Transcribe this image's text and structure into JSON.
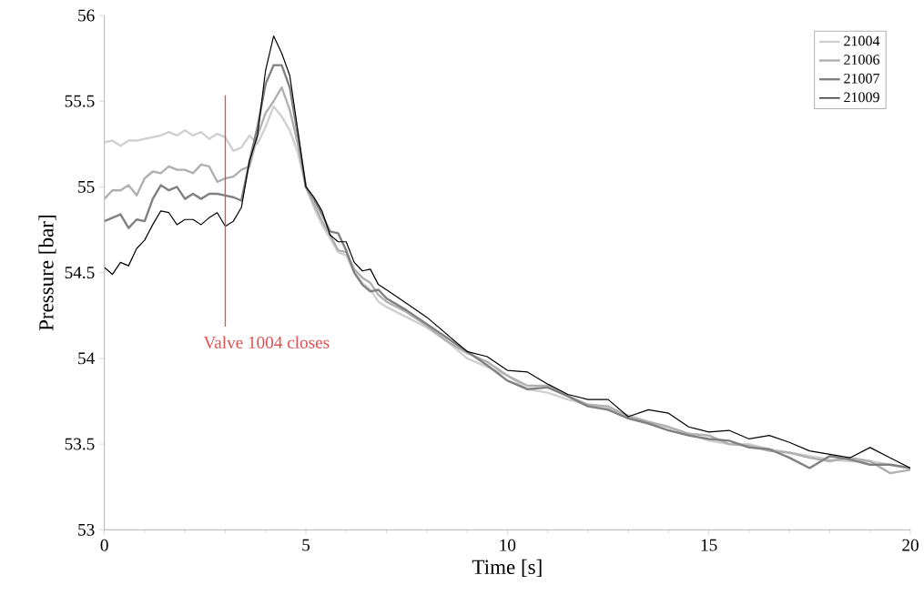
{
  "chart_data": {
    "type": "line",
    "xlabel": "Time [s]",
    "ylabel": "Pressure [bar]",
    "x": [
      0,
      0.2,
      0.4,
      0.6,
      0.8,
      1.0,
      1.2,
      1.4,
      1.6,
      1.8,
      2.0,
      2.2,
      2.4,
      2.6,
      2.8,
      3.0,
      3.2,
      3.4,
      3.6,
      3.8,
      4.0,
      4.2,
      4.4,
      4.6,
      4.8,
      5.0,
      5.2,
      5.4,
      5.6,
      5.8,
      6.0,
      6.2,
      6.4,
      6.6,
      6.8,
      7.0,
      7.5,
      8.0,
      8.5,
      9.0,
      9.5,
      10,
      10.5,
      11,
      11.5,
      12,
      12.5,
      13,
      13.5,
      14,
      14.5,
      15,
      15.5,
      16,
      16.5,
      17,
      17.5,
      18,
      18.5,
      19,
      19.5,
      20
    ],
    "series": [
      {
        "name": "21004",
        "color": "#d0d0d0",
        "values": [
          55.26,
          55.27,
          55.24,
          55.27,
          55.27,
          55.28,
          55.29,
          55.3,
          55.32,
          55.3,
          55.33,
          55.3,
          55.32,
          55.28,
          55.31,
          55.29,
          55.21,
          55.23,
          55.3,
          55.25,
          55.35,
          55.47,
          55.41,
          55.33,
          55.2,
          55.0,
          54.88,
          54.78,
          54.7,
          54.62,
          54.6,
          54.5,
          54.44,
          54.4,
          54.33,
          54.3,
          54.24,
          54.18,
          54.1,
          54.0,
          53.95,
          53.9,
          53.82,
          53.8,
          53.76,
          53.73,
          53.71,
          53.67,
          53.63,
          53.6,
          53.56,
          53.52,
          53.5,
          53.5,
          53.47,
          53.45,
          53.43,
          53.41,
          53.4,
          53.4,
          53.38,
          53.36
        ]
      },
      {
        "name": "21006",
        "color": "#b0b0b0",
        "values": [
          54.93,
          54.98,
          54.98,
          55.01,
          54.95,
          55.05,
          55.09,
          55.08,
          55.12,
          55.1,
          55.1,
          55.08,
          55.13,
          55.12,
          55.03,
          55.05,
          55.06,
          55.1,
          55.12,
          55.3,
          55.43,
          55.5,
          55.58,
          55.45,
          55.25,
          55.0,
          54.9,
          54.8,
          54.72,
          54.63,
          54.62,
          54.52,
          54.47,
          54.44,
          54.37,
          54.33,
          54.27,
          54.19,
          54.1,
          54.03,
          53.98,
          53.9,
          53.84,
          53.84,
          53.78,
          53.73,
          53.72,
          53.66,
          53.63,
          53.6,
          53.56,
          53.55,
          53.5,
          53.49,
          53.46,
          53.45,
          53.42,
          53.4,
          53.42,
          53.4,
          53.33,
          53.35
        ]
      },
      {
        "name": "21007",
        "color": "#808080",
        "values": [
          54.8,
          54.82,
          54.84,
          54.76,
          54.81,
          54.8,
          54.93,
          55.01,
          54.98,
          55.0,
          54.93,
          54.96,
          54.93,
          54.96,
          54.96,
          54.95,
          54.94,
          54.92,
          55.15,
          55.35,
          55.6,
          55.71,
          55.71,
          55.58,
          55.3,
          55.0,
          54.93,
          54.84,
          54.74,
          54.73,
          54.63,
          54.5,
          54.43,
          54.39,
          54.4,
          54.35,
          54.28,
          54.2,
          54.12,
          54.04,
          53.96,
          53.87,
          53.82,
          53.83,
          53.78,
          53.72,
          53.7,
          53.65,
          53.62,
          53.58,
          53.55,
          53.53,
          53.52,
          53.48,
          53.47,
          53.42,
          53.36,
          53.43,
          53.41,
          53.38,
          53.38,
          53.36
        ]
      },
      {
        "name": "21009",
        "color": "#000000",
        "values": [
          54.53,
          54.49,
          54.56,
          54.54,
          54.64,
          54.69,
          54.78,
          54.86,
          54.85,
          54.78,
          54.81,
          54.81,
          54.78,
          54.82,
          54.85,
          54.77,
          54.8,
          54.88,
          55.15,
          55.3,
          55.68,
          55.88,
          55.78,
          55.65,
          55.33,
          55.0,
          54.94,
          54.86,
          54.72,
          54.68,
          54.68,
          54.56,
          54.51,
          54.52,
          54.43,
          54.4,
          54.32,
          54.24,
          54.14,
          54.04,
          54.01,
          53.93,
          53.92,
          53.85,
          53.79,
          53.76,
          53.76,
          53.66,
          53.7,
          53.68,
          53.6,
          53.57,
          53.58,
          53.53,
          53.55,
          53.51,
          53.46,
          53.44,
          53.42,
          53.48,
          53.42,
          53.36
        ]
      }
    ],
    "xlim": [
      0,
      20
    ],
    "xticks": [
      0,
      5,
      10,
      15,
      20
    ],
    "ylim": [
      53,
      56
    ],
    "yticks": [
      53,
      53.5,
      54,
      54.5,
      55,
      55.5,
      56
    ],
    "ref_lines": [
      {
        "axis": "x",
        "value": 3,
        "label": "Valve 1004 closes",
        "color": "#e05050"
      }
    ],
    "legend": "top right",
    "grid": false,
    "marker": "none",
    "line_style": "solid"
  }
}
